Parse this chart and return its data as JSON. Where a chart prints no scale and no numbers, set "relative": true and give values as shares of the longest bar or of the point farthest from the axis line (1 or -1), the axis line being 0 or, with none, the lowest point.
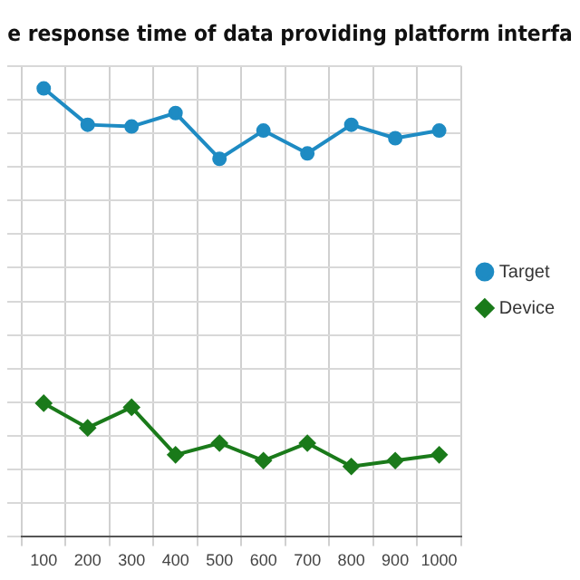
{
  "chart_data": {
    "type": "line",
    "title": "e response time of data providing platform interfa",
    "relative": true,
    "categories": [
      "100",
      "200",
      "300",
      "400",
      "500",
      "600",
      "700",
      "800",
      "900",
      "1000"
    ],
    "series": [
      {
        "name": "Target",
        "color": "#1e8bc3",
        "marker": "circle",
        "values": [
          1,
          0.919,
          0.915,
          0.945,
          0.843,
          0.906,
          0.855,
          0.919,
          0.889,
          0.906
        ]
      },
      {
        "name": "Device",
        "color": "#1a7a1a",
        "marker": "diamond",
        "values": [
          0.298,
          0.243,
          0.289,
          0.183,
          0.209,
          0.17,
          0.209,
          0.157,
          0.17,
          0.183
        ]
      }
    ],
    "grid": true,
    "legend": "right"
  }
}
